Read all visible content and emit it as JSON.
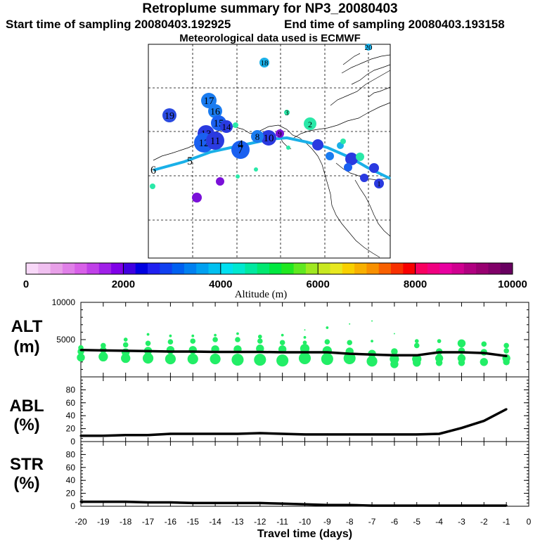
{
  "header": {
    "title": "Retroplume summary for NP3_20080403",
    "start_label": "Start time of sampling 20080403.192925",
    "end_label": "End time of sampling 20080403.193158",
    "met_label": "Meteorological data used is ECMWF"
  },
  "colors": {
    "track": "#1ab0e8",
    "scatter": "#22ee66",
    "line": "#000000",
    "colorbar": [
      "#f8d8f8",
      "#f0c0f0",
      "#e8a0e8",
      "#e080e8",
      "#d860e8",
      "#c040e8",
      "#a020e8",
      "#8000e8",
      "#4000e0",
      "#0000e0",
      "#2020f0",
      "#1040f0",
      "#0060f0",
      "#0080f0",
      "#00a0f0",
      "#00c0f0",
      "#00e0f0",
      "#00e8d0",
      "#00e8a0",
      "#00e870",
      "#00e840",
      "#20e820",
      "#60e820",
      "#a0e820",
      "#c8e820",
      "#e8e820",
      "#f8d000",
      "#f8b000",
      "#f89000",
      "#f86000",
      "#f83000",
      "#f80000",
      "#f80060",
      "#f00080",
      "#e800a0",
      "#d00090",
      "#b00080",
      "#980070",
      "#800068",
      "#680060"
    ]
  },
  "map": {
    "labels": [
      {
        "text": "20",
        "color": "#1ab0e8"
      },
      {
        "text": "18",
        "color": "#1ab0e8"
      },
      {
        "text": "17",
        "color": "#1a7cf0"
      },
      {
        "text": "19",
        "color": "#2a4ae0"
      },
      {
        "text": "16",
        "color": "#1a7cf0"
      },
      {
        "text": "15",
        "color": "#1a60f0"
      },
      {
        "text": "14",
        "color": "#2a3ae0"
      },
      {
        "text": "13",
        "color": "#2a3ae0"
      },
      {
        "text": "12",
        "color": "#1a60f0"
      },
      {
        "text": "11",
        "color": "#2a3ae0"
      },
      {
        "text": "10",
        "color": "#2a3ae0"
      },
      {
        "text": "9",
        "color": "#7a10d8"
      },
      {
        "text": "8",
        "color": "#1a7cf0"
      },
      {
        "text": "7",
        "color": "#1a60f0"
      },
      {
        "text": "6",
        "color": "#1ab0e8"
      },
      {
        "text": "5",
        "color": "#1ab0e8"
      },
      {
        "text": "4",
        "color": "#1a7cf0"
      },
      {
        "text": "3",
        "color": "#2ae8a8"
      },
      {
        "text": "2",
        "color": "#2ae8a8"
      },
      {
        "text": "1",
        "color": "#2a3ae0"
      }
    ]
  },
  "chart_data": [
    {
      "type": "colorbar",
      "xlabel": "Altitude (m)",
      "range": [
        0,
        10000
      ],
      "tick_labels": [
        "0",
        "2000",
        "4000",
        "6000",
        "8000",
        "10000"
      ]
    },
    {
      "type": "line+scatter",
      "panel_label": "ALT",
      "unit_label": "(m)",
      "ylim": [
        0,
        10000
      ],
      "ytick_labels": [
        "10000",
        "5000"
      ],
      "x": [
        -20,
        -19,
        -18,
        -17,
        -16,
        -15,
        -14,
        -13,
        -12,
        -11,
        -10,
        -9,
        -8,
        -7,
        -6,
        -5,
        -4,
        -3,
        -2,
        -1
      ],
      "values": [
        3600,
        3550,
        3500,
        3450,
        3400,
        3400,
        3350,
        3350,
        3350,
        3300,
        3300,
        3300,
        3100,
        3000,
        2900,
        2900,
        3300,
        3300,
        3200,
        2800
      ],
      "scatter": [
        [
          -20,
          2600,
          6
        ],
        [
          -20,
          3400,
          5
        ],
        [
          -20,
          3900,
          4
        ],
        [
          -19,
          2700,
          7
        ],
        [
          -19,
          3600,
          5
        ],
        [
          -19,
          4200,
          4
        ],
        [
          -18,
          2500,
          7
        ],
        [
          -18,
          3300,
          6
        ],
        [
          -18,
          4300,
          4
        ],
        [
          -18,
          5000,
          3
        ],
        [
          -17,
          2500,
          8
        ],
        [
          -17,
          3500,
          6
        ],
        [
          -17,
          4500,
          4
        ],
        [
          -17,
          5700,
          2
        ],
        [
          -16,
          2400,
          8
        ],
        [
          -16,
          3600,
          6
        ],
        [
          -16,
          4700,
          4
        ],
        [
          -16,
          5500,
          2
        ],
        [
          -15,
          2400,
          8
        ],
        [
          -15,
          3600,
          6
        ],
        [
          -15,
          4800,
          4
        ],
        [
          -15,
          5500,
          2
        ],
        [
          -14,
          2400,
          8
        ],
        [
          -14,
          3700,
          6
        ],
        [
          -14,
          5000,
          4
        ],
        [
          -14,
          5600,
          2
        ],
        [
          -13,
          2300,
          9
        ],
        [
          -13,
          3700,
          6
        ],
        [
          -13,
          5000,
          4
        ],
        [
          -13,
          5800,
          2
        ],
        [
          -12,
          2300,
          9
        ],
        [
          -12,
          3800,
          6
        ],
        [
          -12,
          4800,
          4
        ],
        [
          -12,
          5400,
          3
        ],
        [
          -11,
          2200,
          9
        ],
        [
          -11,
          3700,
          6
        ],
        [
          -11,
          4600,
          4
        ],
        [
          -11,
          5600,
          2
        ],
        [
          -10,
          2500,
          9
        ],
        [
          -10,
          3800,
          7
        ],
        [
          -10,
          4600,
          3
        ],
        [
          -10,
          5300,
          2
        ],
        [
          -10,
          6300,
          1
        ],
        [
          -9,
          2400,
          9
        ],
        [
          -9,
          3500,
          7
        ],
        [
          -9,
          4700,
          4
        ],
        [
          -9,
          6600,
          2
        ],
        [
          -8,
          2500,
          9
        ],
        [
          -8,
          3400,
          6
        ],
        [
          -8,
          4600,
          4
        ],
        [
          -8,
          7100,
          1
        ],
        [
          -7,
          2100,
          8
        ],
        [
          -7,
          3100,
          6
        ],
        [
          -7,
          4800,
          2
        ],
        [
          -7,
          7500,
          1
        ],
        [
          -6,
          1700,
          6
        ],
        [
          -6,
          2400,
          7
        ],
        [
          -6,
          3400,
          5
        ],
        [
          -6,
          5800,
          1
        ],
        [
          -5,
          1900,
          6
        ],
        [
          -5,
          2400,
          7
        ],
        [
          -5,
          4200,
          4
        ],
        [
          -5,
          4800,
          3
        ],
        [
          -4,
          1900,
          5
        ],
        [
          -4,
          2500,
          6
        ],
        [
          -4,
          3400,
          5
        ],
        [
          -4,
          4800,
          3
        ],
        [
          -3,
          1900,
          5
        ],
        [
          -3,
          2500,
          6
        ],
        [
          -3,
          3500,
          5
        ],
        [
          -3,
          4500,
          6
        ],
        [
          -2,
          2000,
          6
        ],
        [
          -2,
          3300,
          5
        ],
        [
          -2,
          4400,
          4
        ],
        [
          -1,
          2000,
          5
        ],
        [
          -1,
          2500,
          6
        ],
        [
          -1,
          3500,
          4
        ],
        [
          -1,
          4200,
          4
        ]
      ]
    },
    {
      "type": "line",
      "panel_label": "ABL",
      "unit_label": "(%)",
      "ylim": [
        0,
        100
      ],
      "ytick_labels": [
        "0",
        "20",
        "40",
        "60",
        "80"
      ],
      "x": [
        -20,
        -19,
        -18,
        -17,
        -16,
        -15,
        -14,
        -13,
        -12,
        -11,
        -10,
        -9,
        -8,
        -7,
        -6,
        -5,
        -4,
        -3,
        -2,
        -1
      ],
      "values": [
        9,
        9,
        10,
        10,
        12,
        12,
        12,
        12,
        13,
        12,
        11,
        11,
        11,
        11,
        11,
        11,
        12,
        21,
        32,
        50
      ]
    },
    {
      "type": "line",
      "panel_label": "STR",
      "unit_label": "(%)",
      "ylim": [
        0,
        100
      ],
      "ytick_labels": [
        "0",
        "20",
        "40",
        "60",
        "80"
      ],
      "x": [
        -20,
        -19,
        -18,
        -17,
        -16,
        -15,
        -14,
        -13,
        -12,
        -11,
        -10,
        -9,
        -8,
        -7,
        -6,
        -5,
        -4,
        -3,
        -2,
        -1
      ],
      "values": [
        7,
        7,
        7,
        6,
        6,
        5,
        5,
        5,
        5,
        4,
        3,
        2,
        2,
        1,
        1,
        1,
        1,
        1,
        1,
        1
      ],
      "xlabel": "Travel time (days)",
      "xtick_labels": [
        "-20",
        "-19",
        "-18",
        "-17",
        "-16",
        "-15",
        "-14",
        "-13",
        "-12",
        "-11",
        "-10",
        "-9",
        "-8",
        "-7",
        "-6",
        "-5",
        "-4",
        "-3",
        "-2",
        "-1",
        "0"
      ]
    }
  ]
}
